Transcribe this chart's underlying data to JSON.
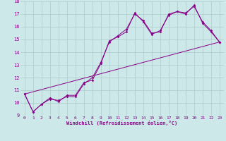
{
  "xlabel": "Windchill (Refroidissement éolien,°C)",
  "bg_color": "#cce8e8",
  "grid_color": "#aacccc",
  "line_color": "#880088",
  "xlim": [
    -0.5,
    23.5
  ],
  "ylim": [
    9,
    18
  ],
  "yticks": [
    9,
    10,
    11,
    12,
    13,
    14,
    15,
    16,
    17,
    18
  ],
  "xticks": [
    0,
    1,
    2,
    3,
    4,
    5,
    6,
    7,
    8,
    9,
    10,
    11,
    12,
    13,
    14,
    15,
    16,
    17,
    18,
    19,
    20,
    21,
    22,
    23
  ],
  "line1_x": [
    0,
    1,
    2,
    3,
    4,
    5,
    6,
    7,
    8,
    9,
    10,
    11,
    12,
    13,
    14,
    15,
    16,
    17,
    18,
    19,
    20,
    21,
    22,
    23
  ],
  "line1_y": [
    10.7,
    9.3,
    9.9,
    10.4,
    10.1,
    10.6,
    10.6,
    11.6,
    11.8,
    13.1,
    14.9,
    15.2,
    15.6,
    17.1,
    16.4,
    15.4,
    15.7,
    16.9,
    17.2,
    17.0,
    17.7,
    16.3,
    15.6,
    14.8
  ],
  "line2_x": [
    0,
    1,
    2,
    3,
    4,
    5,
    6,
    7,
    8,
    9,
    10,
    11,
    12,
    13,
    14,
    15,
    16,
    17,
    18,
    19,
    20,
    21,
    22,
    23
  ],
  "line2_y": [
    10.7,
    9.3,
    9.9,
    10.3,
    10.2,
    10.5,
    10.5,
    11.5,
    12.0,
    13.2,
    14.8,
    15.3,
    15.8,
    17.0,
    16.5,
    15.5,
    15.6,
    17.0,
    17.2,
    17.1,
    17.6,
    16.4,
    15.7,
    14.8
  ],
  "line3_x": [
    0,
    23
  ],
  "line3_y": [
    10.7,
    14.8
  ]
}
